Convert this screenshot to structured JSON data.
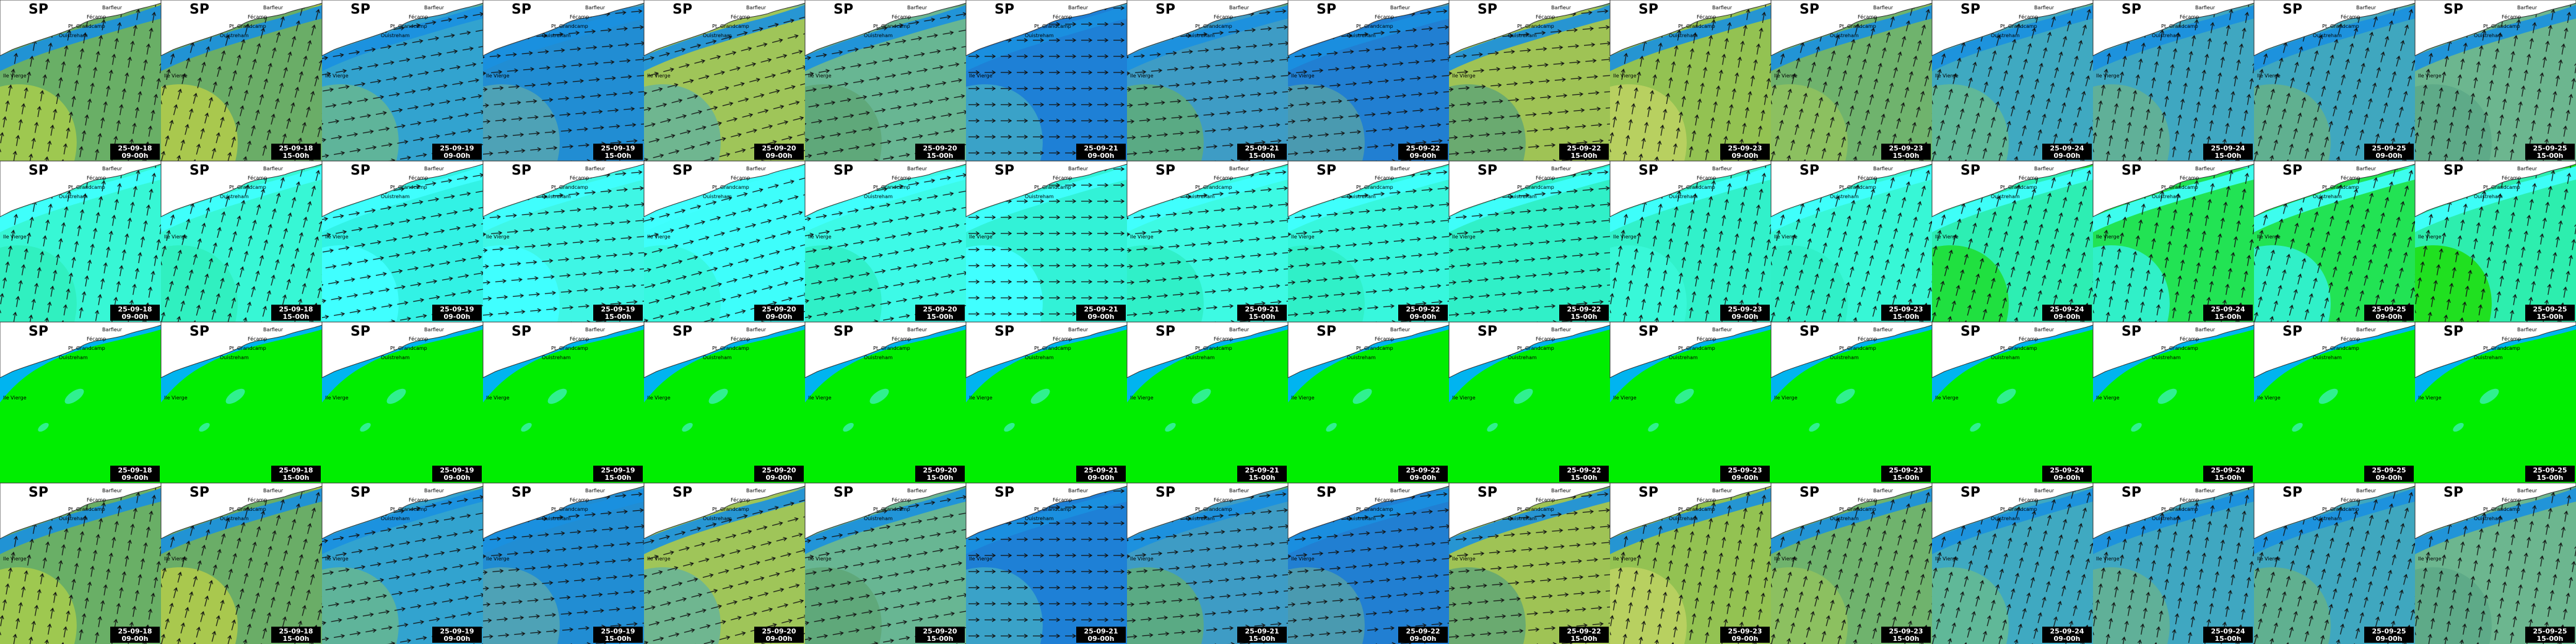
{
  "title": "SP",
  "places": [
    "Barfleur",
    "Pt. Grandcamp",
    "Ouistreham",
    "Fécamp",
    "Ile Vierge"
  ],
  "columns": [
    {
      "date": "25-09-18",
      "time": "09-00h"
    },
    {
      "date": "25-09-18",
      "time": "15-00h"
    },
    {
      "date": "25-09-19",
      "time": "09-00h"
    },
    {
      "date": "25-09-19",
      "time": "15-00h"
    },
    {
      "date": "25-09-20",
      "time": "09-00h"
    },
    {
      "date": "25-09-20",
      "time": "15-00h"
    },
    {
      "date": "25-09-21",
      "time": "09-00h"
    },
    {
      "date": "25-09-21",
      "time": "15-00h"
    },
    {
      "date": "25-09-22",
      "time": "09-00h"
    },
    {
      "date": "25-09-22",
      "time": "15-00h"
    },
    {
      "date": "25-09-23",
      "time": "09-00h"
    },
    {
      "date": "25-09-23",
      "time": "15-00h"
    },
    {
      "date": "25-09-24",
      "time": "09-00h"
    },
    {
      "date": "25-09-24",
      "time": "15-00h"
    },
    {
      "date": "25-09-25",
      "time": "09-00h"
    },
    {
      "date": "25-09-25",
      "time": "15-00h"
    }
  ]
}
